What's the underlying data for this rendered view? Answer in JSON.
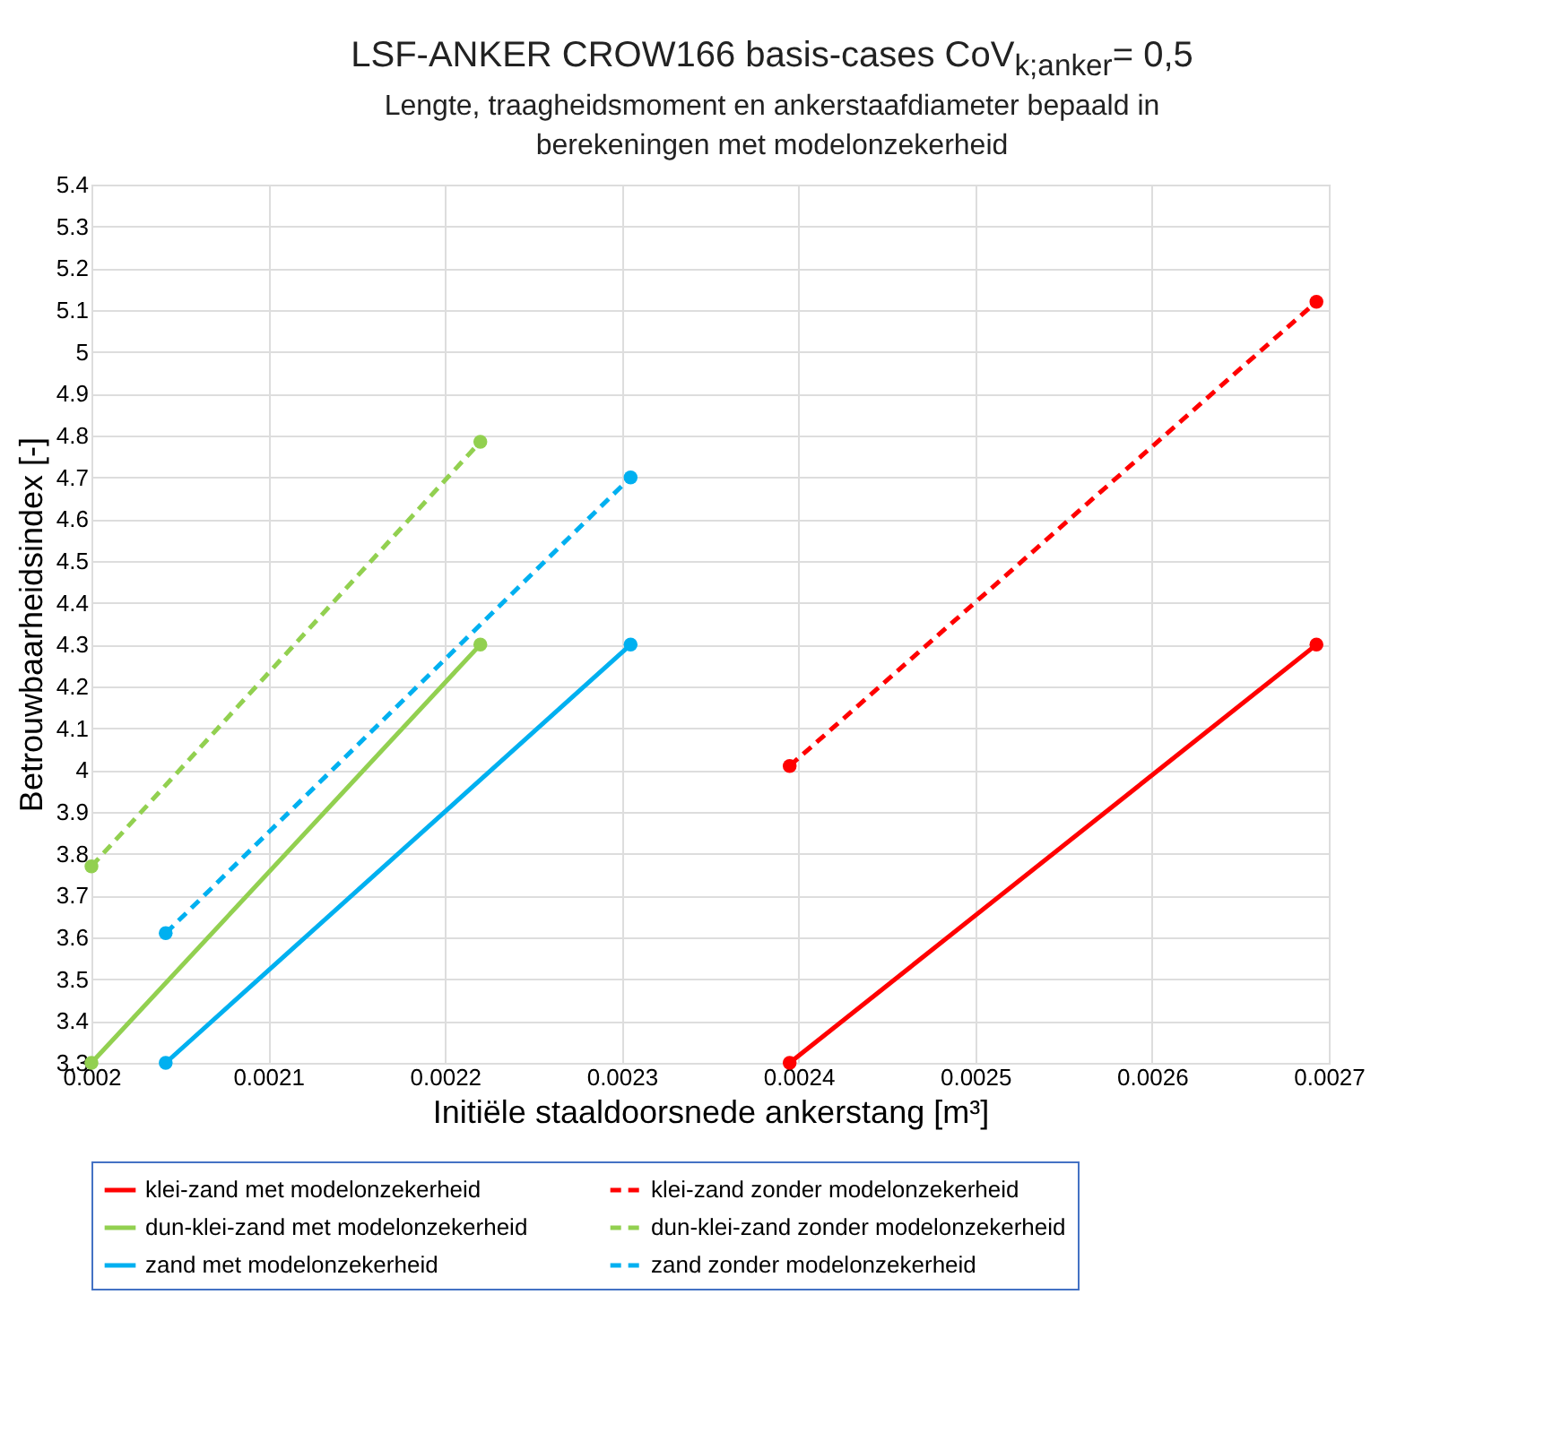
{
  "chart_data": {
    "type": "line",
    "title": "LSF-ANKER CROW166 basis-cases CoV$_{k;anker}$= 0,5",
    "subtitle": "Lengte, traagheidsmoment en ankerstaafdiameter bepaald in\nberekeningen met modelonzekerheid",
    "xlabel": "Initiële staaldoorsnede ankerstang  [m³]",
    "ylabel": "Betrouwbaarheidsindex  [-]",
    "xlim": [
      0.002,
      0.0027
    ],
    "xticks": [
      0.002,
      0.0021,
      0.0022,
      0.0023,
      0.0024,
      0.0025,
      0.0026,
      0.0027
    ],
    "ylim": [
      3.3,
      5.4
    ],
    "yticks": [
      3.3,
      3.4,
      3.5,
      3.6,
      3.7,
      3.8,
      3.9,
      4,
      4.1,
      4.2,
      4.3,
      4.4,
      4.5,
      4.6,
      4.7,
      4.8,
      4.9,
      5,
      5.1,
      5.2,
      5.3,
      5.4
    ],
    "grid": true,
    "legend": "bottom",
    "marker": "circle",
    "series": [
      {
        "name": "klei-zand met modelonzekerheid",
        "color": "#ff0000",
        "line_style": "solid",
        "x": [
          0.002395,
          0.002693
        ],
        "values": [
          3.3,
          4.3
        ]
      },
      {
        "name": "klei-zand zonder modelonzekerheid",
        "color": "#ff0000",
        "line_style": "dashed",
        "x": [
          0.002395,
          0.002693
        ],
        "values": [
          4.01,
          5.12
        ]
      },
      {
        "name": "dun-klei-zand met modelonzekerheid",
        "color": "#92d050",
        "line_style": "solid",
        "x": [
          0.002,
          0.00222
        ],
        "values": [
          3.3,
          4.3
        ]
      },
      {
        "name": "dun-klei-zand zonder modelonzekerheid",
        "color": "#92d050",
        "line_style": "dashed",
        "x": [
          0.002,
          0.00222
        ],
        "values": [
          3.77,
          4.785
        ]
      },
      {
        "name": "zand met modelonzekerheid",
        "color": "#00b0f0",
        "line_style": "solid",
        "x": [
          0.002042,
          0.002305
        ],
        "values": [
          3.3,
          4.3
        ]
      },
      {
        "name": "zand zonder modelonzekerheid",
        "color": "#00b0f0",
        "line_style": "dashed",
        "x": [
          0.002042,
          0.002305
        ],
        "values": [
          3.61,
          4.7
        ]
      }
    ]
  }
}
